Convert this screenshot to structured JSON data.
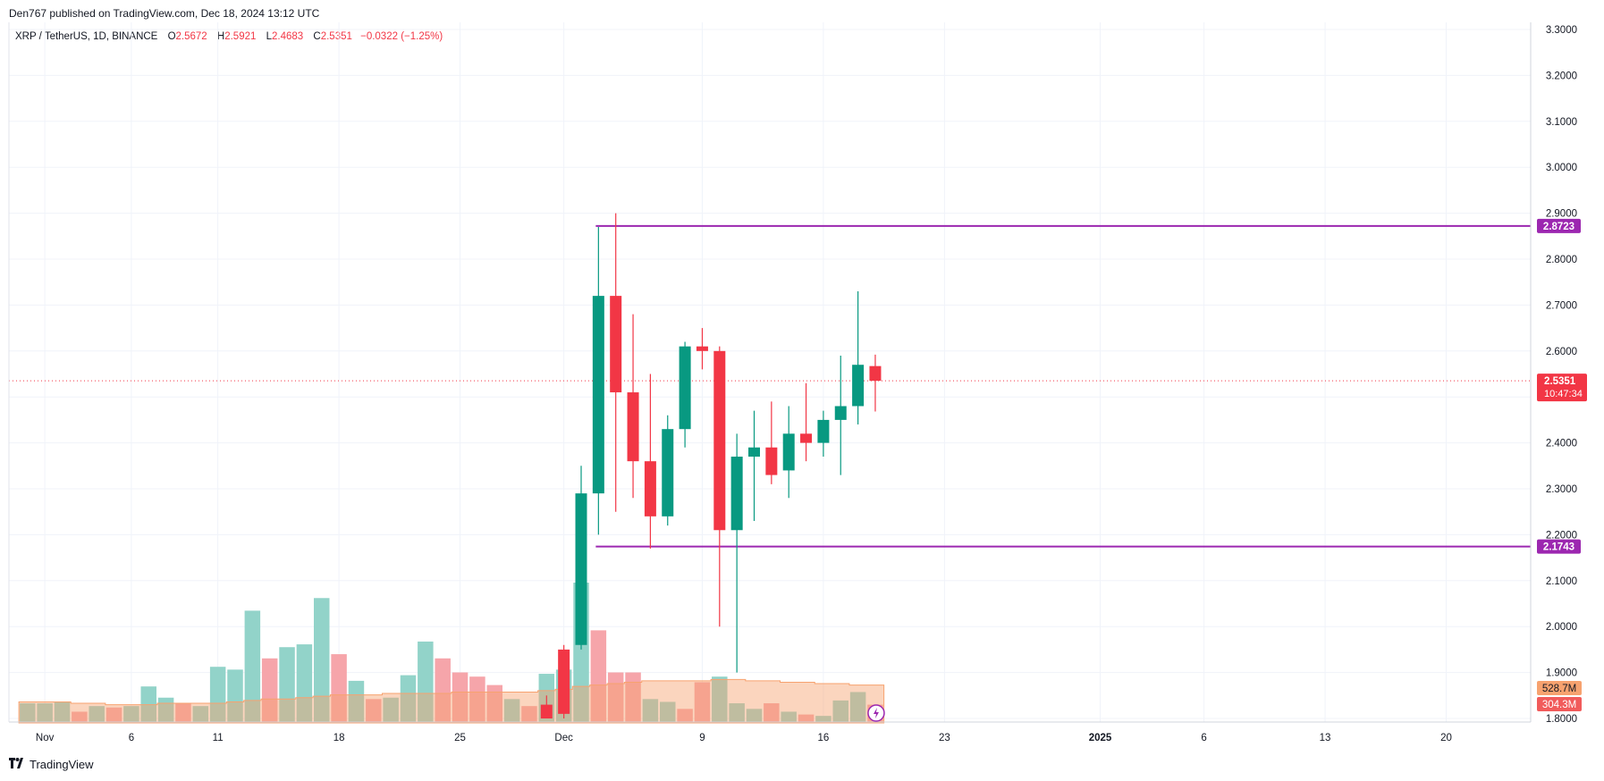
{
  "header": {
    "published_text": "Den767 published on TradingView.com, Dec 18, 2024 13:12 UTC"
  },
  "legend": {
    "symbol": "XRP / TetherUS, 1D, BINANCE",
    "open_label": "O",
    "open": "2.5672",
    "high_label": "H",
    "high": "2.5921",
    "low_label": "L",
    "low": "2.4683",
    "close_label": "C",
    "close": "2.5351",
    "change": "−0.0322 (−1.25%)"
  },
  "footer": {
    "brand": "TradingView"
  },
  "colors": {
    "up": "#089981",
    "down": "#f23645",
    "level_line": "#9c27b0",
    "current_price_line": "#f23645",
    "vol_up": "#92d3c9",
    "vol_down": "#f6a5aa",
    "vol_ma": "#f7a26f",
    "grid": "#f0f3fa"
  },
  "chart_data": {
    "type": "candlestick",
    "ylim": [
      1.8,
      3.3
    ],
    "y_ticks": [
      "3.3000",
      "3.2000",
      "3.1000",
      "3.0000",
      "2.9000",
      "2.8000",
      "2.7000",
      "2.6000",
      "2.5000",
      "2.4000",
      "2.3000",
      "2.2000",
      "2.1000",
      "2.0000",
      "1.9000",
      "1.8000"
    ],
    "x_ticks": [
      {
        "index": 1,
        "label": "Nov"
      },
      {
        "index": 6,
        "label": "6"
      },
      {
        "index": 11,
        "label": "11"
      },
      {
        "index": 18,
        "label": "18"
      },
      {
        "index": 25,
        "label": "25"
      },
      {
        "index": 31,
        "label": "Dec"
      },
      {
        "index": 39,
        "label": "9"
      },
      {
        "index": 46,
        "label": "16"
      },
      {
        "index": 53,
        "label": "23"
      },
      {
        "index": 62,
        "label": "2025"
      },
      {
        "index": 68,
        "label": "6"
      },
      {
        "index": 75,
        "label": "13"
      },
      {
        "index": 82,
        "label": "20"
      }
    ],
    "candles_start_index": 30,
    "candles": [
      {
        "date": "Nov 30",
        "o": 1.83,
        "h": 1.85,
        "l": 1.8,
        "c": 1.8
      },
      {
        "date": "Dec 1",
        "o": 1.95,
        "h": 1.96,
        "l": 1.8,
        "c": 1.81
      },
      {
        "date": "Dec 2",
        "o": 1.96,
        "h": 2.35,
        "l": 1.95,
        "c": 2.29
      },
      {
        "date": "Dec 3",
        "o": 2.29,
        "h": 2.87,
        "l": 2.2,
        "c": 2.72
      },
      {
        "date": "Dec 4",
        "o": 2.72,
        "h": 2.9,
        "l": 2.25,
        "c": 2.51
      },
      {
        "date": "Dec 5",
        "o": 2.51,
        "h": 2.68,
        "l": 2.28,
        "c": 2.36
      },
      {
        "date": "Dec 6",
        "o": 2.36,
        "h": 2.55,
        "l": 2.17,
        "c": 2.24
      },
      {
        "date": "Dec 7",
        "o": 2.24,
        "h": 2.46,
        "l": 2.22,
        "c": 2.43
      },
      {
        "date": "Dec 8",
        "o": 2.43,
        "h": 2.62,
        "l": 2.39,
        "c": 2.61
      },
      {
        "date": "Dec 9",
        "o": 2.61,
        "h": 2.65,
        "l": 2.56,
        "c": 2.6
      },
      {
        "date": "Dec 10",
        "o": 2.6,
        "h": 2.61,
        "l": 2.0,
        "c": 2.21
      },
      {
        "date": "Dec 11",
        "o": 2.21,
        "h": 2.42,
        "l": 1.9,
        "c": 2.37
      },
      {
        "date": "Dec 12",
        "o": 2.37,
        "h": 2.47,
        "l": 2.23,
        "c": 2.39
      },
      {
        "date": "Dec 13",
        "o": 2.39,
        "h": 2.49,
        "l": 2.31,
        "c": 2.33
      },
      {
        "date": "Dec 14",
        "o": 2.34,
        "h": 2.48,
        "l": 2.28,
        "c": 2.42
      },
      {
        "date": "Dec 15",
        "o": 2.42,
        "h": 2.53,
        "l": 2.36,
        "c": 2.4
      },
      {
        "date": "Dec 16",
        "o": 2.4,
        "h": 2.47,
        "l": 2.37,
        "c": 2.45
      },
      {
        "date": "Dec 17",
        "o": 2.45,
        "h": 2.59,
        "l": 2.33,
        "c": 2.48
      },
      {
        "date": "Dec 18",
        "o": 2.48,
        "h": 2.73,
        "l": 2.44,
        "c": 2.57
      },
      {
        "date": "Dec 19",
        "o": 2.5672,
        "h": 2.5921,
        "l": 2.4683,
        "c": 2.5351
      }
    ],
    "volume_bars": [
      {
        "v": 14,
        "up": true
      },
      {
        "v": 14,
        "up": true
      },
      {
        "v": 15,
        "up": true
      },
      {
        "v": 8,
        "up": false
      },
      {
        "v": 12,
        "up": true
      },
      {
        "v": 11,
        "up": false
      },
      {
        "v": 12,
        "up": true
      },
      {
        "v": 26,
        "up": true
      },
      {
        "v": 18,
        "up": true
      },
      {
        "v": 14,
        "up": false
      },
      {
        "v": 12,
        "up": true
      },
      {
        "v": 40,
        "up": true
      },
      {
        "v": 38,
        "up": true
      },
      {
        "v": 80,
        "up": true
      },
      {
        "v": 46,
        "up": false
      },
      {
        "v": 54,
        "up": true
      },
      {
        "v": 56,
        "up": true
      },
      {
        "v": 89,
        "up": true
      },
      {
        "v": 49,
        "up": false
      },
      {
        "v": 30,
        "up": true
      },
      {
        "v": 17,
        "up": false
      },
      {
        "v": 18,
        "up": true
      },
      {
        "v": 34,
        "up": true
      },
      {
        "v": 58,
        "up": true
      },
      {
        "v": 46,
        "up": false
      },
      {
        "v": 36,
        "up": false
      },
      {
        "v": 33,
        "up": false
      },
      {
        "v": 27,
        "up": false
      },
      {
        "v": 17,
        "up": true
      },
      {
        "v": 12,
        "up": false
      },
      {
        "v": 35,
        "up": true
      },
      {
        "v": 38,
        "up": true
      },
      {
        "v": 100,
        "up": true
      },
      {
        "v": 66,
        "up": false
      },
      {
        "v": 36,
        "up": false
      },
      {
        "v": 36,
        "up": false
      },
      {
        "v": 17,
        "up": true
      },
      {
        "v": 15,
        "up": true
      },
      {
        "v": 10,
        "up": false
      },
      {
        "v": 29,
        "up": false
      },
      {
        "v": 33,
        "up": true
      },
      {
        "v": 14,
        "up": true
      },
      {
        "v": 10,
        "up": true
      },
      {
        "v": 14,
        "up": false
      },
      {
        "v": 8,
        "up": true
      },
      {
        "v": 6,
        "up": false
      },
      {
        "v": 5,
        "up": true
      },
      {
        "v": 16,
        "up": true
      },
      {
        "v": 22,
        "up": true
      },
      {
        "v": 13,
        "up": false
      }
    ],
    "volume_ma": [
      15,
      15,
      15,
      14,
      14,
      13,
      13,
      13,
      14,
      14,
      14,
      14,
      15,
      16,
      17,
      17,
      18,
      19,
      20,
      20,
      20,
      21,
      21,
      21,
      21,
      22,
      22,
      22,
      22,
      22,
      23,
      24,
      26,
      27,
      28,
      29,
      30,
      30,
      30,
      30,
      31,
      31,
      30,
      30,
      29,
      29,
      28,
      28,
      27,
      27
    ],
    "horizontal_levels": [
      {
        "price": 2.8723,
        "label": "2.8723",
        "from_index": 33
      },
      {
        "price": 2.1743,
        "label": "2.1743",
        "from_index": 33
      }
    ],
    "current_price": {
      "value": "2.5351",
      "countdown": "10:47:34"
    },
    "volume_labels": {
      "ma": "528.7M",
      "vol": "304.3M"
    }
  }
}
